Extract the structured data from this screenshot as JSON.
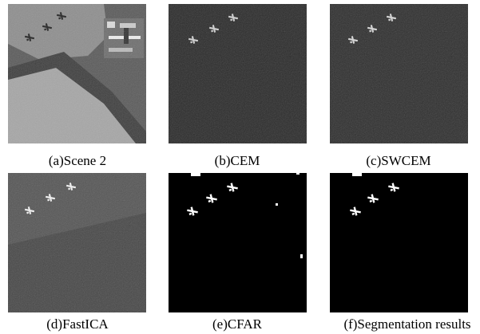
{
  "panels": [
    {
      "caption": "(a)Scene 2"
    },
    {
      "caption": "(b)CEM"
    },
    {
      "caption": "(c)SWCEM"
    },
    {
      "caption": "(d)FastICA"
    },
    {
      "caption": "(e)CFAR"
    },
    {
      "caption": "(f)Segmentation results"
    }
  ]
}
